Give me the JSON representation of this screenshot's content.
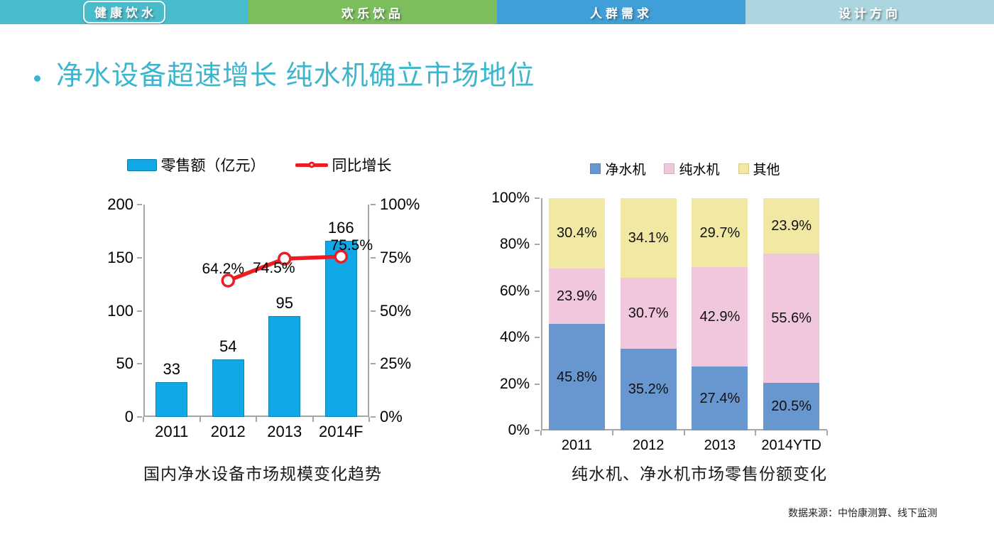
{
  "tabs": [
    {
      "label": "健康饮水",
      "color": "#48bccb",
      "active": true
    },
    {
      "label": "欢乐饮品",
      "color": "#7cbe5b",
      "active": false
    },
    {
      "label": "人群需求",
      "color": "#3f9fd8",
      "active": false
    },
    {
      "label": "设计方向",
      "color": "#abd5df",
      "active": false
    }
  ],
  "title": {
    "bullet": "",
    "text": "净水设备超速增长 纯水机确立市场地位",
    "color": "#3cb6cd"
  },
  "source_note": "数据来源：中怡康测算、线下监测",
  "chart_data": [
    {
      "type": "bar",
      "caption": "国内净水设备市场规模变化趋势",
      "categories": [
        "2011",
        "2012",
        "2013",
        "2014F"
      ],
      "series": [
        {
          "name": "零售额（亿元）",
          "type": "bar",
          "color": "#10a8e6",
          "edge_color": "#0d85bb",
          "values": [
            33,
            54,
            95,
            166
          ],
          "labels": [
            "33",
            "54",
            "95",
            "166"
          ],
          "axis": "left"
        },
        {
          "name": "同比增长",
          "type": "line",
          "color": "#ed1c23",
          "marker": "open-circle",
          "values": [
            null,
            64.2,
            74.5,
            75.5
          ],
          "labels": [
            "",
            "64.2%",
            "74.5%",
            "75.5%"
          ],
          "axis": "right"
        }
      ],
      "left_axis": {
        "min": 0,
        "max": 200,
        "ticks": [
          "0",
          "50",
          "100",
          "150",
          "200"
        ]
      },
      "right_axis": {
        "min": 0,
        "max": 100,
        "ticks": [
          "0%",
          "25%",
          "50%",
          "75%",
          "100%"
        ]
      },
      "grid": false,
      "legend_position": "top"
    },
    {
      "type": "stacked-bar-100",
      "caption": "纯水机、净水机市场零售份额变化",
      "categories": [
        "2011",
        "2012",
        "2013",
        "2014YTD"
      ],
      "series": [
        {
          "name": "净水机",
          "color": "#6897cf",
          "values": [
            45.8,
            35.2,
            27.4,
            20.5
          ],
          "labels": [
            "45.8%",
            "35.2%",
            "27.4%",
            "20.5%"
          ]
        },
        {
          "name": "纯水机",
          "color": "#f1c7dd",
          "values": [
            23.9,
            30.7,
            42.9,
            55.6
          ],
          "labels": [
            "23.9%",
            "30.7%",
            "42.9%",
            "55.6%"
          ]
        },
        {
          "name": "其他",
          "color": "#f0e8a3",
          "values": [
            30.4,
            34.1,
            29.7,
            23.9
          ],
          "labels": [
            "30.4%",
            "34.1%",
            "29.7%",
            "23.9%"
          ]
        }
      ],
      "y_axis": {
        "min": 0,
        "max": 100,
        "ticks": [
          "0%",
          "20%",
          "40%",
          "60%",
          "80%",
          "100%"
        ]
      },
      "grid": false,
      "legend_position": "top"
    }
  ]
}
